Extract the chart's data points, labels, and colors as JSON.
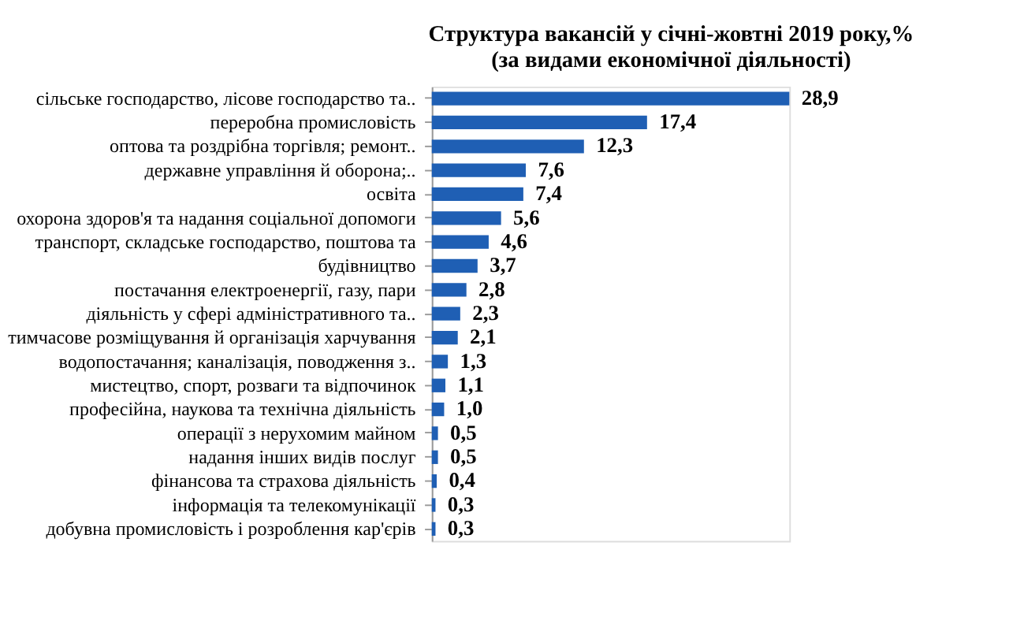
{
  "chart_data": {
    "type": "bar",
    "orientation": "horizontal",
    "title": "Структура вакансій у січні-жовтні  2019 року,%",
    "subtitle": "(за видами економічної діяльності)",
    "categories": [
      "сільське господарство, лісове господарство та..",
      "переробна промисловість",
      "оптова та роздрібна торгівля; ремонт..",
      "державне управління й оборона;..",
      "освіта",
      "охорона здоров'я та надання соціальної допомоги",
      "транспорт, складське господарство, поштова та",
      "будівництво",
      "постачання електроенергії, газу, пари",
      "діяльність у сфері адміністративного та..",
      "тимчасове розміщування й організація харчування",
      "водопостачання; каналізація, поводження з..",
      "мистецтво, спорт, розваги та відпочинок",
      "професійна, наукова та технічна діяльність",
      "операції з нерухомим майном",
      "надання інших видів послуг",
      "фінансова та страхова діяльність",
      "інформація та телекомунікації",
      "добувна промисловість і розроблення кар'єрів"
    ],
    "values": [
      28.9,
      17.4,
      12.3,
      7.6,
      7.4,
      5.6,
      4.6,
      3.7,
      2.8,
      2.3,
      2.1,
      1.3,
      1.1,
      1.0,
      0.5,
      0.5,
      0.4,
      0.3,
      0.3
    ],
    "value_labels": [
      "28,9",
      "17,4",
      "12,3",
      "7,6",
      "7,4",
      "5,6",
      "4,6",
      "3,7",
      "2,8",
      "2,3",
      "2,1",
      "1,3",
      "1,1",
      "1,0",
      "0,5",
      "0,5",
      "0,4",
      "0,3",
      "0,3"
    ],
    "color": "#1f5fb4"
  }
}
